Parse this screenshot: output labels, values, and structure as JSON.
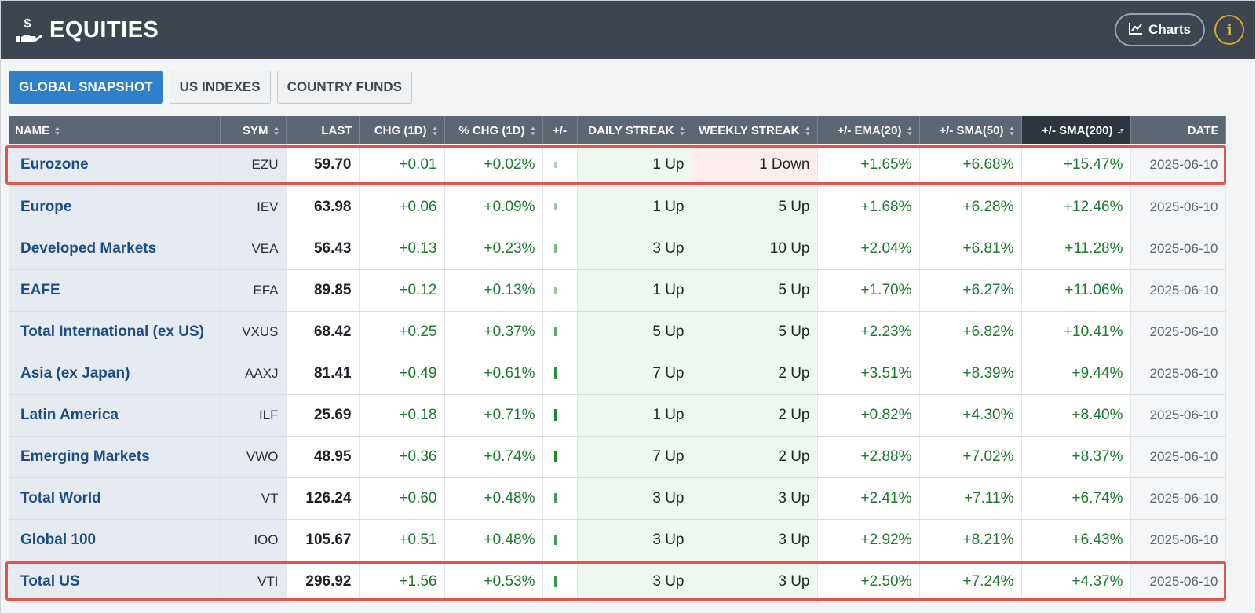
{
  "header": {
    "title": "EQUITIES",
    "charts_label": "Charts",
    "info_label": "i"
  },
  "tabs": [
    {
      "label": "GLOBAL SNAPSHOT",
      "active": true
    },
    {
      "label": "US INDEXES",
      "active": false
    },
    {
      "label": "COUNTRY FUNDS",
      "active": false
    }
  ],
  "columns": [
    "NAME",
    "SYM",
    "LAST",
    "CHG (1D)",
    "% CHG (1D)",
    "+/-",
    "DAILY STREAK",
    "WEEKLY STREAK",
    "+/- EMA(20)",
    "+/- SMA(50)",
    "+/- SMA(200)",
    "DATE"
  ],
  "rows": [
    {
      "name": "Eurozone",
      "sym": "EZU",
      "last": "59.70",
      "chg": "+0.01",
      "pchg": "+0.02%",
      "pchg_pct": 0.02,
      "daily": "1 Up",
      "weekly": "1 Down",
      "weekly_dir": "down",
      "ema20": "+1.65%",
      "sma50": "+6.68%",
      "sma200": "+15.47%",
      "date": "2025-06-10",
      "highlight": true
    },
    {
      "name": "Europe",
      "sym": "IEV",
      "last": "63.98",
      "chg": "+0.06",
      "pchg": "+0.09%",
      "pchg_pct": 0.09,
      "daily": "1 Up",
      "weekly": "5 Up",
      "weekly_dir": "up",
      "ema20": "+1.68%",
      "sma50": "+6.28%",
      "sma200": "+12.46%",
      "date": "2025-06-10",
      "highlight": false
    },
    {
      "name": "Developed Markets",
      "sym": "VEA",
      "last": "56.43",
      "chg": "+0.13",
      "pchg": "+0.23%",
      "pchg_pct": 0.23,
      "daily": "3 Up",
      "weekly": "10 Up",
      "weekly_dir": "up",
      "ema20": "+2.04%",
      "sma50": "+6.81%",
      "sma200": "+11.28%",
      "date": "2025-06-10",
      "highlight": false
    },
    {
      "name": "EAFE",
      "sym": "EFA",
      "last": "89.85",
      "chg": "+0.12",
      "pchg": "+0.13%",
      "pchg_pct": 0.13,
      "daily": "1 Up",
      "weekly": "5 Up",
      "weekly_dir": "up",
      "ema20": "+1.70%",
      "sma50": "+6.27%",
      "sma200": "+11.06%",
      "date": "2025-06-10",
      "highlight": false
    },
    {
      "name": "Total International (ex US)",
      "sym": "VXUS",
      "last": "68.42",
      "chg": "+0.25",
      "pchg": "+0.37%",
      "pchg_pct": 0.37,
      "daily": "5 Up",
      "weekly": "5 Up",
      "weekly_dir": "up",
      "ema20": "+2.23%",
      "sma50": "+6.82%",
      "sma200": "+10.41%",
      "date": "2025-06-10",
      "highlight": false
    },
    {
      "name": "Asia (ex Japan)",
      "sym": "AAXJ",
      "last": "81.41",
      "chg": "+0.49",
      "pchg": "+0.61%",
      "pchg_pct": 0.61,
      "daily": "7 Up",
      "weekly": "2 Up",
      "weekly_dir": "up",
      "ema20": "+3.51%",
      "sma50": "+8.39%",
      "sma200": "+9.44%",
      "date": "2025-06-10",
      "highlight": false
    },
    {
      "name": "Latin America",
      "sym": "ILF",
      "last": "25.69",
      "chg": "+0.18",
      "pchg": "+0.71%",
      "pchg_pct": 0.71,
      "daily": "1 Up",
      "weekly": "2 Up",
      "weekly_dir": "up",
      "ema20": "+0.82%",
      "sma50": "+4.30%",
      "sma200": "+8.40%",
      "date": "2025-06-10",
      "highlight": false
    },
    {
      "name": "Emerging Markets",
      "sym": "VWO",
      "last": "48.95",
      "chg": "+0.36",
      "pchg": "+0.74%",
      "pchg_pct": 0.74,
      "daily": "7 Up",
      "weekly": "2 Up",
      "weekly_dir": "up",
      "ema20": "+2.88%",
      "sma50": "+7.02%",
      "sma200": "+8.37%",
      "date": "2025-06-10",
      "highlight": false
    },
    {
      "name": "Total World",
      "sym": "VT",
      "last": "126.24",
      "chg": "+0.60",
      "pchg": "+0.48%",
      "pchg_pct": 0.48,
      "daily": "3 Up",
      "weekly": "3 Up",
      "weekly_dir": "up",
      "ema20": "+2.41%",
      "sma50": "+7.11%",
      "sma200": "+6.74%",
      "date": "2025-06-10",
      "highlight": false
    },
    {
      "name": "Global 100",
      "sym": "IOO",
      "last": "105.67",
      "chg": "+0.51",
      "pchg": "+0.48%",
      "pchg_pct": 0.48,
      "daily": "3 Up",
      "weekly": "3 Up",
      "weekly_dir": "up",
      "ema20": "+2.92%",
      "sma50": "+8.21%",
      "sma200": "+6.43%",
      "date": "2025-06-10",
      "highlight": false
    },
    {
      "name": "Total US",
      "sym": "VTI",
      "last": "296.92",
      "chg": "+1.56",
      "pchg": "+0.53%",
      "pchg_pct": 0.53,
      "daily": "3 Up",
      "weekly": "3 Up",
      "weekly_dir": "up",
      "ema20": "+2.50%",
      "sma50": "+7.24%",
      "sma200": "+4.37%",
      "date": "2025-06-10",
      "highlight": true
    }
  ],
  "colors": {
    "header_bg": "#3d4550",
    "active_tab": "#2f80c9",
    "positive": "#1c7a2d",
    "highlight_border": "#e0554d"
  }
}
